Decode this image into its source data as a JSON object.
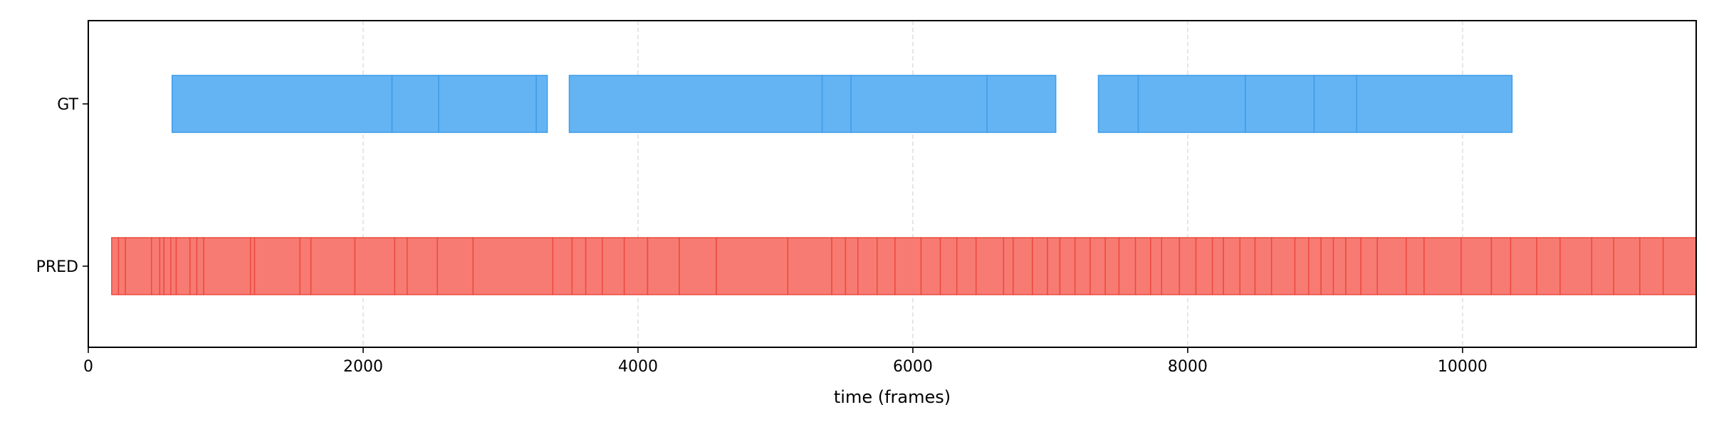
{
  "chart_data": {
    "type": "timeline",
    "title": "",
    "xlabel": "time (frames)",
    "ylabel": "",
    "xlim": [
      0,
      11700
    ],
    "xticks": [
      0,
      2000,
      4000,
      6000,
      8000,
      10000
    ],
    "grid": {
      "x": true,
      "y": false,
      "style": "dashed"
    },
    "colors": {
      "GT": "#64b4f4",
      "PRED": "#f77b72"
    },
    "rows": [
      {
        "name": "GT",
        "segments": [
          [
            610,
            2210
          ],
          [
            2210,
            2550
          ],
          [
            2550,
            3260
          ],
          [
            3260,
            3340
          ],
          [
            3500,
            5340
          ],
          [
            5340,
            5550
          ],
          [
            5550,
            6540
          ],
          [
            6540,
            7040
          ],
          [
            7350,
            7640
          ],
          [
            7640,
            8420
          ],
          [
            8420,
            8920
          ],
          [
            8920,
            9230
          ],
          [
            9230,
            10360
          ]
        ]
      },
      {
        "name": "PRED",
        "segments": [
          [
            170,
            220
          ],
          [
            220,
            270
          ],
          [
            270,
            460
          ],
          [
            460,
            520
          ],
          [
            520,
            550
          ],
          [
            550,
            600
          ],
          [
            600,
            640
          ],
          [
            640,
            740
          ],
          [
            740,
            790
          ],
          [
            790,
            840
          ],
          [
            840,
            1180
          ],
          [
            1180,
            1210
          ],
          [
            1210,
            1540
          ],
          [
            1540,
            1620
          ],
          [
            1620,
            1940
          ],
          [
            1940,
            2230
          ],
          [
            2230,
            2320
          ],
          [
            2320,
            2540
          ],
          [
            2540,
            2800
          ],
          [
            2800,
            3380
          ],
          [
            3380,
            3520
          ],
          [
            3520,
            3620
          ],
          [
            3620,
            3740
          ],
          [
            3740,
            3900
          ],
          [
            3900,
            4070
          ],
          [
            4070,
            4300
          ],
          [
            4300,
            4570
          ],
          [
            4570,
            5090
          ],
          [
            5090,
            5410
          ],
          [
            5410,
            5510
          ],
          [
            5510,
            5600
          ],
          [
            5600,
            5740
          ],
          [
            5740,
            5870
          ],
          [
            5870,
            6060
          ],
          [
            6060,
            6200
          ],
          [
            6200,
            6320
          ],
          [
            6320,
            6460
          ],
          [
            6460,
            6660
          ],
          [
            6660,
            6730
          ],
          [
            6730,
            6870
          ],
          [
            6870,
            6980
          ],
          [
            6980,
            7070
          ],
          [
            7070,
            7180
          ],
          [
            7180,
            7290
          ],
          [
            7290,
            7400
          ],
          [
            7400,
            7500
          ],
          [
            7500,
            7620
          ],
          [
            7620,
            7730
          ],
          [
            7730,
            7810
          ],
          [
            7810,
            7940
          ],
          [
            7940,
            8060
          ],
          [
            8060,
            8180
          ],
          [
            8180,
            8260
          ],
          [
            8260,
            8380
          ],
          [
            8380,
            8490
          ],
          [
            8490,
            8610
          ],
          [
            8610,
            8780
          ],
          [
            8780,
            8880
          ],
          [
            8880,
            8970
          ],
          [
            8970,
            9060
          ],
          [
            9060,
            9150
          ],
          [
            9150,
            9260
          ],
          [
            9260,
            9380
          ],
          [
            9380,
            9590
          ],
          [
            9590,
            9720
          ],
          [
            9720,
            9990
          ],
          [
            9990,
            10210
          ],
          [
            10210,
            10350
          ],
          [
            10350,
            10540
          ],
          [
            10540,
            10710
          ],
          [
            10710,
            10940
          ],
          [
            10940,
            11100
          ],
          [
            11100,
            11290
          ],
          [
            11290,
            11460
          ],
          [
            11460,
            11700
          ]
        ]
      }
    ]
  }
}
